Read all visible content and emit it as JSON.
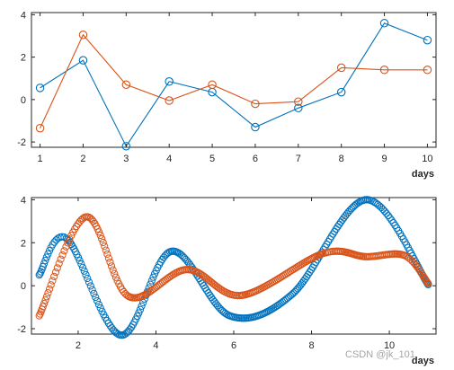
{
  "chart_data": [
    {
      "type": "line",
      "title": "",
      "xlabel": "days",
      "ylabel": "",
      "xlim": [
        0.8,
        10.2
      ],
      "ylim": [
        -2.25,
        4.1
      ],
      "xticks": [
        1,
        2,
        3,
        4,
        5,
        6,
        7,
        8,
        9,
        10
      ],
      "yticks": [
        -2,
        0,
        2,
        4
      ],
      "marker": "circle",
      "grid": false,
      "series": [
        {
          "color": "#0072BD",
          "x": [
            1,
            2,
            3,
            4,
            5,
            6,
            7,
            8,
            9,
            10
          ],
          "values": [
            0.55,
            1.85,
            -2.2,
            0.85,
            0.35,
            -1.3,
            -0.4,
            0.35,
            3.6,
            2.8
          ]
        },
        {
          "color": "#D95319",
          "x": [
            1,
            2,
            3,
            4,
            5,
            6,
            7,
            8,
            9,
            10
          ],
          "values": [
            -1.35,
            3.05,
            0.7,
            -0.05,
            0.7,
            -0.2,
            -0.1,
            1.5,
            1.4,
            1.4
          ]
        }
      ]
    },
    {
      "type": "line",
      "title": "",
      "xlabel": "days",
      "ylabel": "",
      "xlim": [
        0.8,
        11.2
      ],
      "ylim": [
        -2.25,
        4.1
      ],
      "xticks": [
        2,
        4,
        6,
        8,
        10
      ],
      "yticks": [
        -2,
        0,
        2,
        4
      ],
      "marker": "circle",
      "grid": false,
      "interpolation": "smooth",
      "series": [
        {
          "color": "#0072BD",
          "x": [
            1,
            1.7,
            3.1,
            4.4,
            5.9,
            7.5,
            9.4,
            11
          ],
          "values": [
            0.5,
            2.2,
            -2.3,
            1.6,
            -1.4,
            -0.4,
            4.0,
            0.05
          ]
        },
        {
          "color": "#D95319",
          "x": [
            1,
            2.2,
            3.3,
            4.8,
            6.2,
            8.3,
            9.4,
            10.4,
            11
          ],
          "values": [
            -1.4,
            3.2,
            -0.5,
            0.75,
            -0.45,
            1.5,
            1.35,
            1.4,
            0.1
          ]
        }
      ]
    }
  ],
  "watermark": "CSDN @jk_101"
}
